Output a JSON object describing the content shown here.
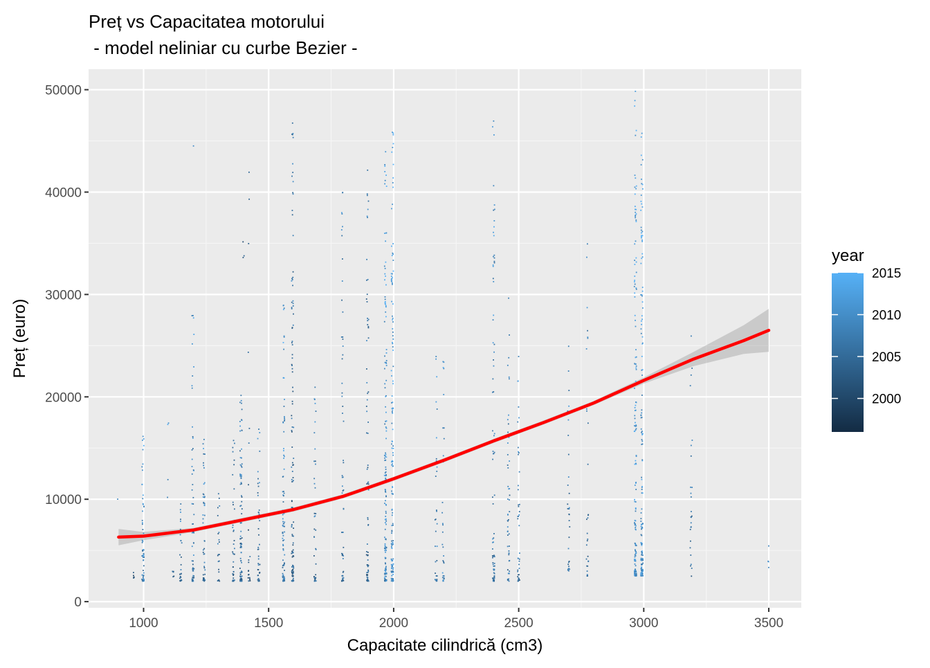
{
  "chart_data": {
    "type": "scatter",
    "title": "Preț vs Capacitatea motorului",
    "subtitle": " - model neliniar cu curbe Bezier -",
    "xlabel": "Capacitate cilindrică (cm3)",
    "ylabel": "Preț (euro)",
    "xlim": [
      780,
      3630
    ],
    "ylim": [
      -600,
      52000
    ],
    "x_ticks": [
      1000,
      1500,
      2000,
      2500,
      3000,
      3500
    ],
    "x_tick_labels": [
      "1000",
      "1500",
      "2000",
      "2500",
      "3000",
      "3500"
    ],
    "y_ticks": [
      0,
      10000,
      20000,
      30000,
      40000,
      50000
    ],
    "y_tick_labels": [
      "0",
      "10000",
      "20000",
      "30000",
      "40000",
      "50000"
    ],
    "grid": true,
    "panel_background": "#EBEBEB",
    "grid_color": "#FFFFFF",
    "legend": {
      "title": "year",
      "placement": "right",
      "type": "colorbar",
      "range": [
        1996,
        2015
      ],
      "ticks": [
        2000,
        2005,
        2010,
        2015
      ],
      "tick_labels": [
        "2000",
        "2005",
        "2010",
        "2015"
      ],
      "color_low": "#132B43",
      "color_high": "#56B1F7"
    },
    "scatter_columns": [
      {
        "x": 900,
        "ymin": 10000,
        "ymax": 10000,
        "n": 1,
        "year": 2008
      },
      {
        "x": 960,
        "ymin": 2300,
        "ymax": 2900,
        "n": 4,
        "year": 2001
      },
      {
        "x": 998,
        "ymin": 2000,
        "ymax": 16200,
        "n": 60,
        "year": 2008
      },
      {
        "x": 1100,
        "ymin": 7800,
        "ymax": 17500,
        "n": 3,
        "year": 2009
      },
      {
        "x": 1120,
        "ymin": 2400,
        "ymax": 3000,
        "n": 4,
        "year": 2002
      },
      {
        "x": 1149,
        "ymin": 2000,
        "ymax": 9600,
        "n": 25,
        "year": 2005
      },
      {
        "x": 1198,
        "ymin": 2000,
        "ymax": 28000,
        "n": 60,
        "year": 2007
      },
      {
        "x": 1200,
        "ymin": 44500,
        "ymax": 44500,
        "n": 1,
        "year": 2012
      },
      {
        "x": 1242,
        "ymin": 2000,
        "ymax": 15900,
        "n": 50,
        "year": 2006
      },
      {
        "x": 1300,
        "ymin": 2000,
        "ymax": 10600,
        "n": 20,
        "year": 2004
      },
      {
        "x": 1360,
        "ymin": 2000,
        "ymax": 15800,
        "n": 40,
        "year": 2004
      },
      {
        "x": 1390,
        "ymin": 2000,
        "ymax": 20200,
        "n": 90,
        "year": 2005
      },
      {
        "x": 1398,
        "ymin": 25000,
        "ymax": 35200,
        "n": 2,
        "year": 1999
      },
      {
        "x": 1422,
        "ymin": 2000,
        "ymax": 42000,
        "n": 20,
        "year": 2003
      },
      {
        "x": 1461,
        "ymin": 2000,
        "ymax": 16900,
        "n": 40,
        "year": 2005
      },
      {
        "x": 1560,
        "ymin": 2000,
        "ymax": 29000,
        "n": 90,
        "year": 2008
      },
      {
        "x": 1596,
        "ymin": 2000,
        "ymax": 46800,
        "n": 120,
        "year": 2004
      },
      {
        "x": 1686,
        "ymin": 2000,
        "ymax": 21000,
        "n": 40,
        "year": 2005
      },
      {
        "x": 1796,
        "ymin": 2000,
        "ymax": 40000,
        "n": 60,
        "year": 2005
      },
      {
        "x": 1896,
        "ymin": 2000,
        "ymax": 42200,
        "n": 80,
        "year": 2004
      },
      {
        "x": 1968,
        "ymin": 2000,
        "ymax": 44000,
        "n": 150,
        "year": 2009
      },
      {
        "x": 1995,
        "ymin": 2000,
        "ymax": 45900,
        "n": 150,
        "year": 2010
      },
      {
        "x": 2170,
        "ymin": 2000,
        "ymax": 24000,
        "n": 30,
        "year": 2007
      },
      {
        "x": 2198,
        "ymin": 2000,
        "ymax": 23500,
        "n": 30,
        "year": 2008
      },
      {
        "x": 2400,
        "ymin": 2000,
        "ymax": 47000,
        "n": 80,
        "year": 2007
      },
      {
        "x": 2460,
        "ymin": 2000,
        "ymax": 29700,
        "n": 50,
        "year": 2006
      },
      {
        "x": 2500,
        "ymin": 2000,
        "ymax": 24000,
        "n": 40,
        "year": 2006
      },
      {
        "x": 2700,
        "ymin": 3000,
        "ymax": 25000,
        "n": 30,
        "year": 2006
      },
      {
        "x": 2775,
        "ymin": 2500,
        "ymax": 35000,
        "n": 30,
        "year": 2006
      },
      {
        "x": 2967,
        "ymin": 2500,
        "ymax": 49900,
        "n": 150,
        "year": 2010
      },
      {
        "x": 2993,
        "ymin": 2500,
        "ymax": 45800,
        "n": 150,
        "year": 2010
      },
      {
        "x": 3190,
        "ymin": 2300,
        "ymax": 26000,
        "n": 25,
        "year": 2006
      },
      {
        "x": 3500,
        "ymin": 2500,
        "ymax": 5500,
        "n": 3,
        "year": 2007
      }
    ],
    "series": [
      {
        "type": "smooth",
        "color": "#FF0000",
        "ribbon_color": "#999999",
        "x": [
          900,
          1000,
          1200,
          1400,
          1600,
          1800,
          2000,
          2200,
          2400,
          2600,
          2800,
          3000,
          3200,
          3400,
          3500
        ],
        "y": [
          6300,
          6400,
          7000,
          8000,
          9000,
          10300,
          12000,
          13800,
          15700,
          17500,
          19400,
          21600,
          23700,
          25500,
          26500
        ],
        "ymin": [
          5500,
          6000,
          6800,
          7800,
          8800,
          10100,
          11800,
          13600,
          15500,
          17300,
          19200,
          21300,
          23000,
          24200,
          24400
        ],
        "ymax": [
          7100,
          6800,
          7200,
          8200,
          9200,
          10500,
          12200,
          14000,
          15900,
          17700,
          19600,
          21900,
          24400,
          27000,
          28600
        ]
      }
    ]
  }
}
